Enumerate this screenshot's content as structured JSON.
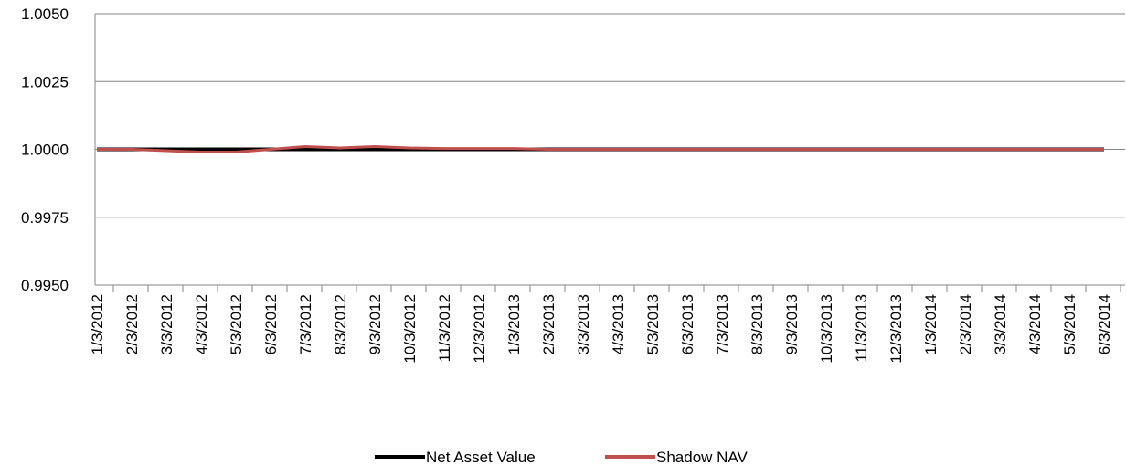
{
  "chart_data": {
    "type": "line",
    "categories": [
      "1/3/2012",
      "2/3/2012",
      "3/3/2012",
      "4/3/2012",
      "5/3/2012",
      "6/3/2012",
      "7/3/2012",
      "8/3/2012",
      "9/3/2012",
      "10/3/2012",
      "11/3/2012",
      "12/3/2012",
      "1/3/2013",
      "2/3/2013",
      "3/3/2013",
      "4/3/2013",
      "5/3/2013",
      "6/3/2013",
      "7/3/2013",
      "8/3/2013",
      "9/3/2013",
      "10/3/2013",
      "11/3/2013",
      "12/3/2013",
      "1/3/2014",
      "2/3/2014",
      "3/3/2014",
      "4/3/2014",
      "5/3/2014",
      "6/3/2014"
    ],
    "series": [
      {
        "name": "Net Asset Value",
        "color": "#000000",
        "values": [
          1.0,
          1.0,
          1.0,
          1.0,
          1.0,
          1.0,
          1.0,
          1.0,
          1.0,
          1.0,
          1.0,
          1.0,
          1.0,
          1.0,
          1.0,
          1.0,
          1.0,
          1.0,
          1.0,
          1.0,
          1.0,
          1.0,
          1.0,
          1.0,
          1.0,
          1.0,
          1.0,
          1.0,
          1.0,
          1.0
        ]
      },
      {
        "name": "Shadow NAV",
        "color": "#c0504d",
        "values": [
          1.0,
          1.0,
          0.99995,
          0.9999,
          0.9999,
          1.0,
          1.0001,
          1.00005,
          1.0001,
          1.00005,
          1.00003,
          1.00003,
          1.00003,
          1.0,
          1.0,
          1.0,
          1.0,
          1.0,
          1.0,
          1.0,
          1.0,
          1.0,
          1.0,
          1.0,
          1.0,
          1.0,
          1.0,
          1.0,
          1.0,
          1.0
        ]
      }
    ],
    "ylim": [
      0.995,
      1.005
    ],
    "yticks": [
      {
        "value": 0.995,
        "label": "0.9950"
      },
      {
        "value": 0.9975,
        "label": "0.9975"
      },
      {
        "value": 1.0,
        "label": "1.0000"
      },
      {
        "value": 1.0025,
        "label": "1.0025"
      },
      {
        "value": 1.005,
        "label": "1.0050"
      }
    ],
    "grid": true,
    "legend": "bottom"
  }
}
